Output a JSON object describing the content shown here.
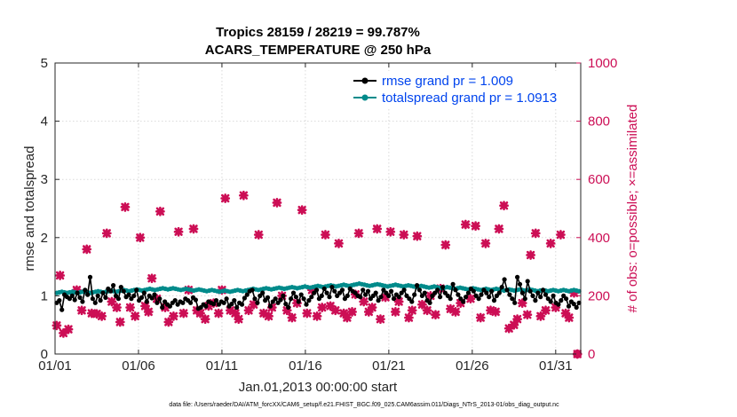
{
  "chart_data": {
    "type": "line",
    "title": "Tropics 28159 / 28219 = 99.787%",
    "subtitle": "ACARS_TEMPERATURE @ 250 hPa",
    "xlabel": "Jan.01,2013 00:00:00 start",
    "ylabel": "rmse and totalspread",
    "y2label": "# of obs: o=possible; ×=assimilated",
    "footnote": "data file: /Users/raeder/DAI/ATM_forcXX/CAM6_setup/f.e21.FHIST_BGC.f09_025.CAM6assim.011/Diags_NTrS_2013-01/obs_diag_output.nc",
    "xlim": [
      0,
      31.5
    ],
    "ylim": [
      0,
      5
    ],
    "y2lim": [
      0,
      1000
    ],
    "x_ticks": [
      {
        "value": 0,
        "label": "01/01"
      },
      {
        "value": 5,
        "label": "01/06"
      },
      {
        "value": 10,
        "label": "01/11"
      },
      {
        "value": 15,
        "label": "01/16"
      },
      {
        "value": 20,
        "label": "01/21"
      },
      {
        "value": 25,
        "label": "01/26"
      },
      {
        "value": 30,
        "label": "01/31"
      }
    ],
    "y_ticks": [
      0,
      1,
      2,
      3,
      4,
      5
    ],
    "y2_ticks": [
      0,
      200,
      400,
      600,
      800,
      1000
    ],
    "grid": true,
    "legend_position": "top-right",
    "series": [
      {
        "name": "rmse grand pr = 1.009",
        "color": "#000000",
        "marker": "circle",
        "values": [
          0.88,
          0.92,
          0.76,
          1.02,
          0.98,
          0.95,
          1.0,
          0.93,
          1.05,
          0.97,
          0.9,
          1.1,
          1.02,
          1.32,
          0.95,
          0.88,
          1.0,
          0.92,
          1.05,
          0.97,
          1.12,
          1.08,
          1.18,
          1.0,
          0.95,
          1.15,
          1.08,
          0.98,
          1.02,
          0.95,
          1.0,
          1.1,
          0.92,
          0.97,
          1.05,
          0.9,
          1.0,
          0.96,
          1.02,
          0.88,
          0.95,
          0.8,
          0.9,
          0.85,
          0.82,
          0.88,
          0.92,
          0.85,
          0.9,
          0.88,
          0.95,
          0.92,
          0.88,
          0.97,
          0.93,
          0.78,
          0.8,
          0.85,
          0.82,
          0.9,
          0.88,
          0.86,
          0.92,
          0.85,
          0.9,
          0.88,
          0.95,
          0.82,
          0.86,
          0.92,
          0.8,
          0.88,
          0.85,
          0.96,
          1.02,
          1.08,
          1.1,
          0.95,
          0.88,
          1.0,
          1.05,
          0.92,
          0.97,
          0.82,
          0.9,
          0.95,
          0.88,
          0.93,
          1.0,
          0.86,
          0.8,
          0.95,
          1.05,
          0.98,
          0.9,
          1.02,
          0.95,
          0.85,
          0.92,
          0.98,
          1.05,
          1.1,
          0.95,
          1.0,
          1.12,
          1.05,
          0.98,
          1.15,
          1.08,
          1.0,
          1.05,
          1.1,
          0.95,
          1.0,
          1.12,
          1.08,
          1.05,
          1.0,
          0.98,
          1.1,
          1.02,
          1.08,
          0.95,
          1.0,
          1.05,
          0.92,
          0.98,
          1.1,
          1.05,
          1.0,
          1.08,
          0.95,
          1.02,
          0.98,
          1.05,
          1.1,
          1.0,
          0.95,
          0.9,
          1.02,
          1.18,
          1.1,
          1.0,
          1.05,
          0.92,
          0.88,
          1.0,
          1.05,
          1.1,
          0.98,
          1.15,
          1.05,
          1.0,
          0.95,
          1.2,
          1.1,
          1.02,
          0.95,
          0.9,
          0.98,
          1.05,
          1.12,
          1.08,
          1.0,
          0.95,
          1.02,
          1.1,
          1.05,
          0.98,
          1.08,
          0.92,
          1.0,
          1.05,
          1.15,
          1.28,
          1.1,
          1.02,
          0.95,
          0.88,
          1.32,
          1.2,
          1.05,
          0.95,
          1.25,
          1.08,
          1.0,
          0.92,
          1.05,
          0.98,
          1.1,
          1.02,
          0.95,
          0.9,
          1.0,
          0.88,
          0.85,
          0.92,
          1.0,
          0.95,
          0.82,
          0.9,
          0.86,
          0.8,
          0.88
        ]
      },
      {
        "name": "totalspread grand pr = 1.0913",
        "color": "#008b8b",
        "marker": "circle",
        "values": [
          1.05,
          1.06,
          1.07,
          1.06,
          1.05,
          1.06,
          1.07,
          1.06,
          1.05,
          1.06,
          1.07,
          1.07,
          1.06,
          1.05,
          1.06,
          1.07,
          1.08,
          1.07,
          1.06,
          1.07,
          1.08,
          1.09,
          1.08,
          1.07,
          1.08,
          1.09,
          1.1,
          1.09,
          1.08,
          1.09,
          1.1,
          1.11,
          1.1,
          1.09,
          1.1,
          1.11,
          1.12,
          1.11,
          1.1,
          1.11,
          1.12,
          1.13,
          1.12,
          1.11,
          1.12,
          1.13,
          1.12,
          1.11,
          1.1,
          1.11,
          1.12,
          1.11,
          1.1,
          1.09,
          1.1,
          1.11,
          1.1,
          1.09,
          1.08,
          1.09,
          1.1,
          1.09,
          1.08,
          1.07,
          1.08,
          1.09,
          1.08,
          1.07,
          1.08,
          1.09,
          1.1,
          1.09,
          1.08,
          1.09,
          1.1,
          1.11,
          1.12,
          1.11,
          1.1,
          1.11,
          1.12,
          1.13,
          1.12,
          1.11,
          1.12,
          1.13,
          1.14,
          1.13,
          1.12,
          1.13,
          1.14,
          1.15,
          1.14,
          1.13,
          1.14,
          1.15,
          1.16,
          1.15,
          1.14,
          1.15,
          1.16,
          1.17,
          1.16,
          1.15,
          1.16,
          1.17,
          1.18,
          1.17,
          1.16,
          1.17,
          1.18,
          1.19,
          1.18,
          1.17,
          1.18,
          1.19,
          1.2,
          1.21,
          1.2,
          1.19,
          1.18,
          1.17,
          1.18,
          1.19,
          1.2,
          1.19,
          1.18,
          1.17,
          1.16,
          1.17,
          1.18,
          1.19,
          1.18,
          1.17,
          1.16,
          1.17,
          1.18,
          1.17,
          1.16,
          1.15,
          1.16,
          1.17,
          1.16,
          1.15,
          1.14,
          1.15,
          1.16,
          1.15,
          1.14,
          1.13,
          1.14,
          1.15,
          1.14,
          1.13,
          1.12,
          1.13,
          1.14,
          1.13,
          1.12,
          1.11,
          1.12,
          1.13,
          1.12,
          1.11,
          1.1,
          1.11,
          1.12,
          1.11,
          1.1,
          1.11,
          1.12,
          1.11,
          1.1,
          1.09,
          1.1,
          1.11,
          1.1,
          1.09,
          1.1,
          1.11,
          1.1,
          1.09,
          1.1,
          1.11,
          1.1,
          1.09,
          1.08,
          1.09,
          1.1,
          1.09,
          1.08,
          1.09,
          1.1,
          1.09,
          1.08,
          1.09,
          1.1,
          1.09,
          1.08,
          1.09,
          1.1,
          1.09,
          1.08
        ]
      },
      {
        "name": "# of obs (assimilated)",
        "color": "#cc0e55",
        "marker": "x",
        "axis": "right",
        "points": [
          [
            0.1,
            98
          ],
          [
            0.3,
            270
          ],
          [
            0.5,
            72
          ],
          [
            0.8,
            85
          ],
          [
            1.3,
            220
          ],
          [
            1.6,
            150
          ],
          [
            1.9,
            360
          ],
          [
            2.2,
            140
          ],
          [
            2.5,
            138
          ],
          [
            2.8,
            130
          ],
          [
            3.1,
            415
          ],
          [
            3.4,
            180
          ],
          [
            3.7,
            160
          ],
          [
            3.9,
            110
          ],
          [
            4.2,
            505
          ],
          [
            4.5,
            160
          ],
          [
            4.8,
            130
          ],
          [
            5.1,
            400
          ],
          [
            5.4,
            165
          ],
          [
            5.6,
            145
          ],
          [
            5.8,
            260
          ],
          [
            6.1,
            190
          ],
          [
            6.3,
            490
          ],
          [
            6.6,
            160
          ],
          [
            6.8,
            110
          ],
          [
            7.1,
            130
          ],
          [
            7.4,
            420
          ],
          [
            7.7,
            140
          ],
          [
            8.0,
            220
          ],
          [
            8.3,
            430
          ],
          [
            8.5,
            150
          ],
          [
            8.7,
            140
          ],
          [
            9.0,
            120
          ],
          [
            9.2,
            165
          ],
          [
            9.5,
            175
          ],
          [
            9.8,
            140
          ],
          [
            10.0,
            220
          ],
          [
            10.2,
            535
          ],
          [
            10.5,
            150
          ],
          [
            10.8,
            140
          ],
          [
            11.0,
            120
          ],
          [
            11.3,
            545
          ],
          [
            11.6,
            150
          ],
          [
            11.9,
            170
          ],
          [
            12.2,
            410
          ],
          [
            12.5,
            140
          ],
          [
            12.8,
            130
          ],
          [
            13.0,
            160
          ],
          [
            13.3,
            520
          ],
          [
            13.6,
            200
          ],
          [
            13.9,
            150
          ],
          [
            14.2,
            125
          ],
          [
            14.5,
            175
          ],
          [
            14.8,
            495
          ],
          [
            15.1,
            140
          ],
          [
            15.4,
            220
          ],
          [
            15.7,
            130
          ],
          [
            16.0,
            160
          ],
          [
            16.2,
            410
          ],
          [
            16.5,
            165
          ],
          [
            16.8,
            150
          ],
          [
            17.0,
            380
          ],
          [
            17.3,
            140
          ],
          [
            17.5,
            125
          ],
          [
            17.8,
            145
          ],
          [
            18.0,
            205
          ],
          [
            18.2,
            415
          ],
          [
            18.5,
            180
          ],
          [
            18.8,
            145
          ],
          [
            19.0,
            160
          ],
          [
            19.3,
            430
          ],
          [
            19.5,
            120
          ],
          [
            19.8,
            195
          ],
          [
            20.1,
            420
          ],
          [
            20.4,
            145
          ],
          [
            20.6,
            180
          ],
          [
            20.9,
            410
          ],
          [
            21.2,
            125
          ],
          [
            21.4,
            150
          ],
          [
            21.7,
            405
          ],
          [
            22.0,
            170
          ],
          [
            22.3,
            150
          ],
          [
            22.5,
            200
          ],
          [
            22.8,
            135
          ],
          [
            23.1,
            225
          ],
          [
            23.4,
            375
          ],
          [
            23.7,
            155
          ],
          [
            24.0,
            145
          ],
          [
            24.3,
            175
          ],
          [
            24.6,
            445
          ],
          [
            24.9,
            190
          ],
          [
            25.2,
            440
          ],
          [
            25.5,
            125
          ],
          [
            25.8,
            380
          ],
          [
            26.1,
            150
          ],
          [
            26.4,
            145
          ],
          [
            26.6,
            430
          ],
          [
            26.9,
            510
          ],
          [
            27.2,
            88
          ],
          [
            27.5,
            100
          ],
          [
            27.7,
            120
          ],
          [
            28.0,
            175
          ],
          [
            28.3,
            135
          ],
          [
            28.5,
            340
          ],
          [
            28.8,
            415
          ],
          [
            29.1,
            130
          ],
          [
            29.4,
            150
          ],
          [
            29.7,
            380
          ],
          [
            30.0,
            160
          ],
          [
            30.3,
            410
          ],
          [
            30.6,
            140
          ],
          [
            30.8,
            125
          ],
          [
            31.1,
            210
          ],
          [
            31.3,
            0
          ]
        ]
      },
      {
        "name": "# of obs (possible)",
        "color": "#cc0e55",
        "marker": "circle-open",
        "axis": "right",
        "points": [
          [
            31.3,
            0
          ]
        ]
      }
    ]
  }
}
